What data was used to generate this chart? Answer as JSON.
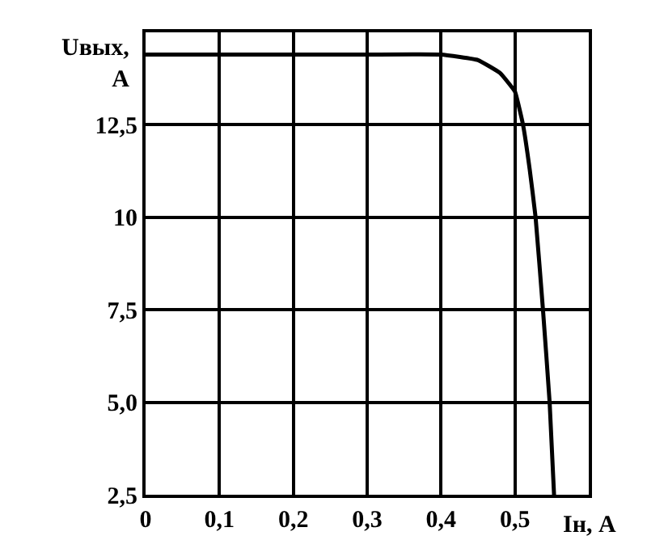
{
  "chart_data": {
    "type": "line",
    "xlabel": "Iн, A",
    "ylabel": "Uвых, A",
    "x": [
      0,
      0.1,
      0.2,
      0.3,
      0.4,
      0.45,
      0.48,
      0.5,
      0.511,
      0.52,
      0.528,
      0.538,
      0.547,
      0.553
    ],
    "series": [
      {
        "color": "#000000",
        "values": [
          14.4,
          14.4,
          14.4,
          14.4,
          14.4,
          14.25,
          13.9,
          13.4,
          12.5,
          11.3,
          10,
          7.5,
          5,
          2.5
        ]
      }
    ],
    "xlim": [
      0,
      0.6
    ],
    "ylim": [
      2.5,
      15
    ],
    "xticks": [
      0,
      {
        "value": 0.1,
        "label": "0,1"
      },
      {
        "value": 0.2,
        "label": "0,2"
      },
      {
        "value": 0.3,
        "label": "0,3"
      },
      {
        "value": 0.4,
        "label": "0,4"
      },
      {
        "value": 0.5,
        "label": "0,5"
      }
    ],
    "yticks": [
      {
        "value": 2.5,
        "label": "2,5"
      },
      {
        "value": 5,
        "label": "5,0"
      },
      {
        "value": 7.5,
        "label": "7,5"
      },
      10,
      {
        "value": 12.5,
        "label": "12,5"
      }
    ],
    "grid": true,
    "legend": false,
    "marker": "none",
    "line_style": "solid"
  }
}
